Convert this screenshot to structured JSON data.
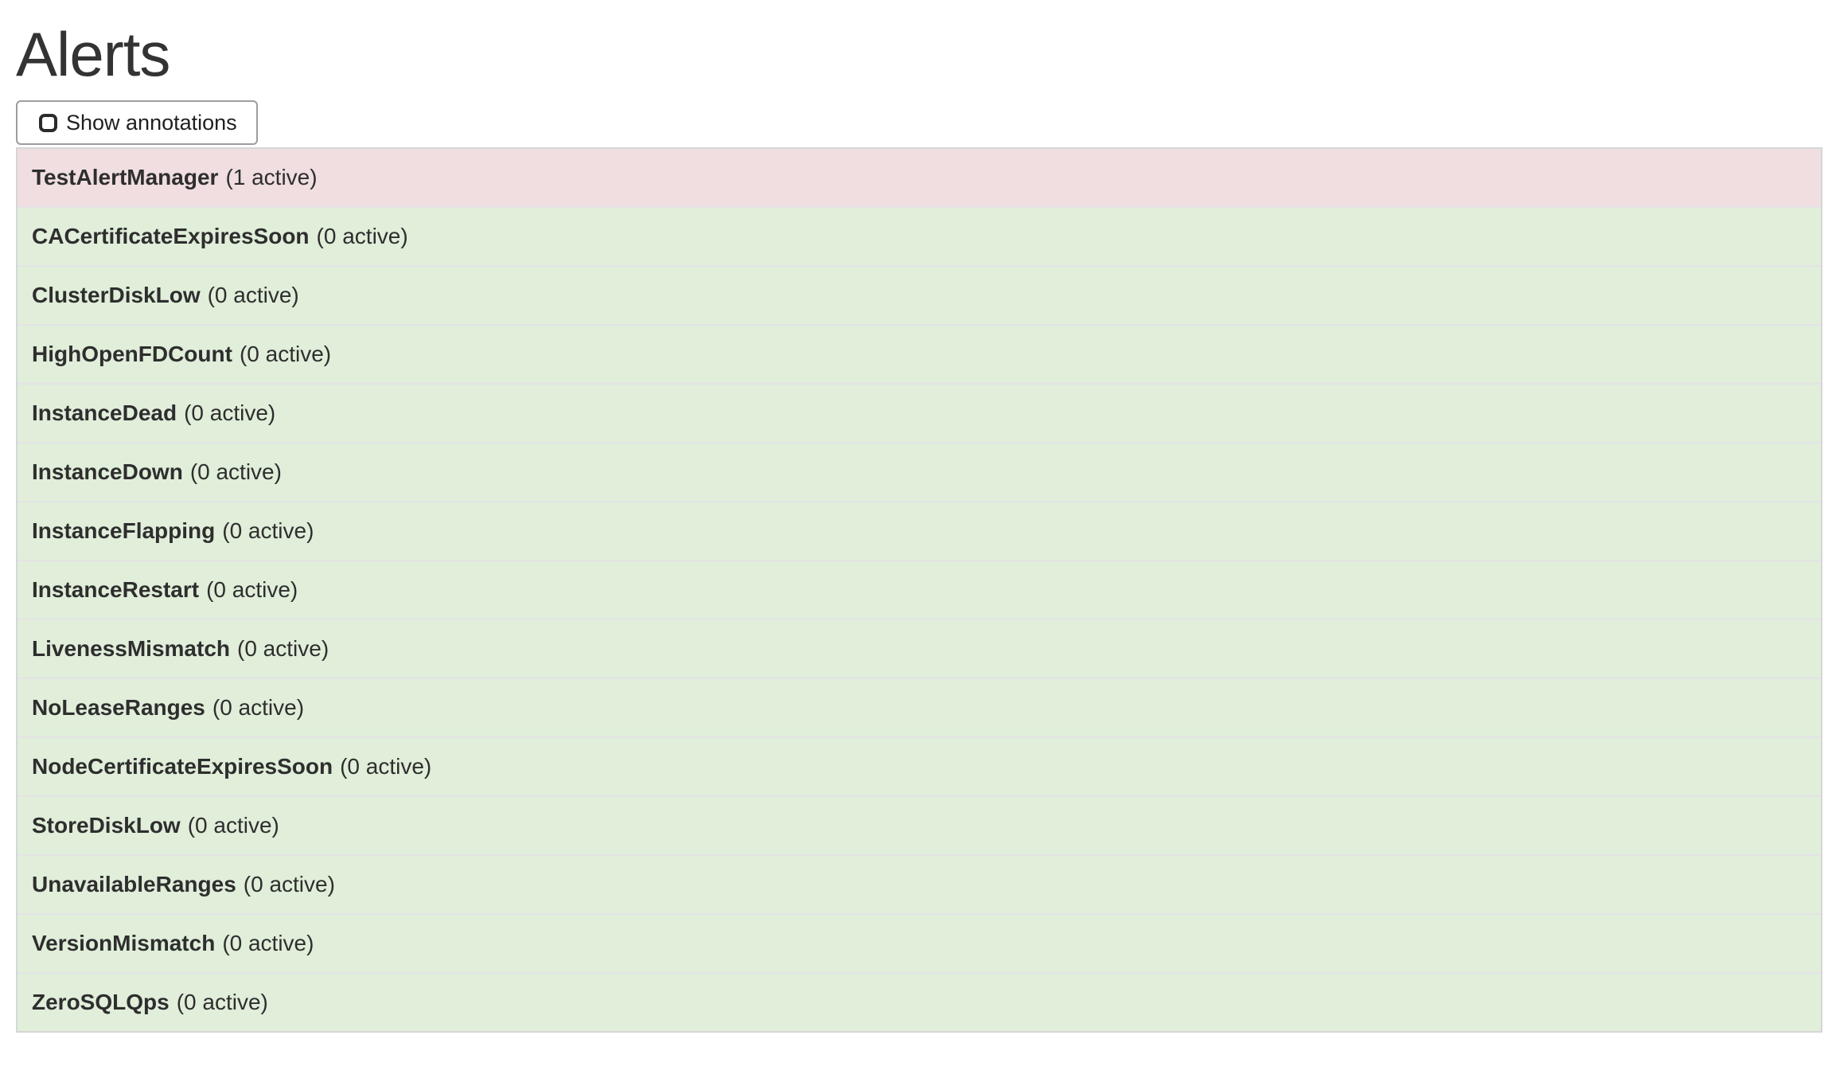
{
  "page": {
    "title": "Alerts"
  },
  "toolbar": {
    "show_annotations_label": "Show annotations",
    "annotations_checkbox_checked": false
  },
  "colors": {
    "firing_row_bg": "#f0dee1",
    "inactive_row_bg": "#e0eeda"
  },
  "alerts": {
    "items": [
      {
        "name": "TestAlertManager",
        "count_label": "(1 active)",
        "state": "firing"
      },
      {
        "name": "CACertificateExpiresSoon",
        "count_label": "(0 active)",
        "state": "inactive"
      },
      {
        "name": "ClusterDiskLow",
        "count_label": "(0 active)",
        "state": "inactive"
      },
      {
        "name": "HighOpenFDCount",
        "count_label": "(0 active)",
        "state": "inactive"
      },
      {
        "name": "InstanceDead",
        "count_label": "(0 active)",
        "state": "inactive"
      },
      {
        "name": "InstanceDown",
        "count_label": "(0 active)",
        "state": "inactive"
      },
      {
        "name": "InstanceFlapping",
        "count_label": "(0 active)",
        "state": "inactive"
      },
      {
        "name": "InstanceRestart",
        "count_label": "(0 active)",
        "state": "inactive"
      },
      {
        "name": "LivenessMismatch",
        "count_label": "(0 active)",
        "state": "inactive"
      },
      {
        "name": "NoLeaseRanges",
        "count_label": "(0 active)",
        "state": "inactive"
      },
      {
        "name": "NodeCertificateExpiresSoon",
        "count_label": "(0 active)",
        "state": "inactive"
      },
      {
        "name": "StoreDiskLow",
        "count_label": "(0 active)",
        "state": "inactive"
      },
      {
        "name": "UnavailableRanges",
        "count_label": "(0 active)",
        "state": "inactive"
      },
      {
        "name": "VersionMismatch",
        "count_label": "(0 active)",
        "state": "inactive"
      },
      {
        "name": "ZeroSQLQps",
        "count_label": "(0 active)",
        "state": "inactive"
      }
    ]
  }
}
